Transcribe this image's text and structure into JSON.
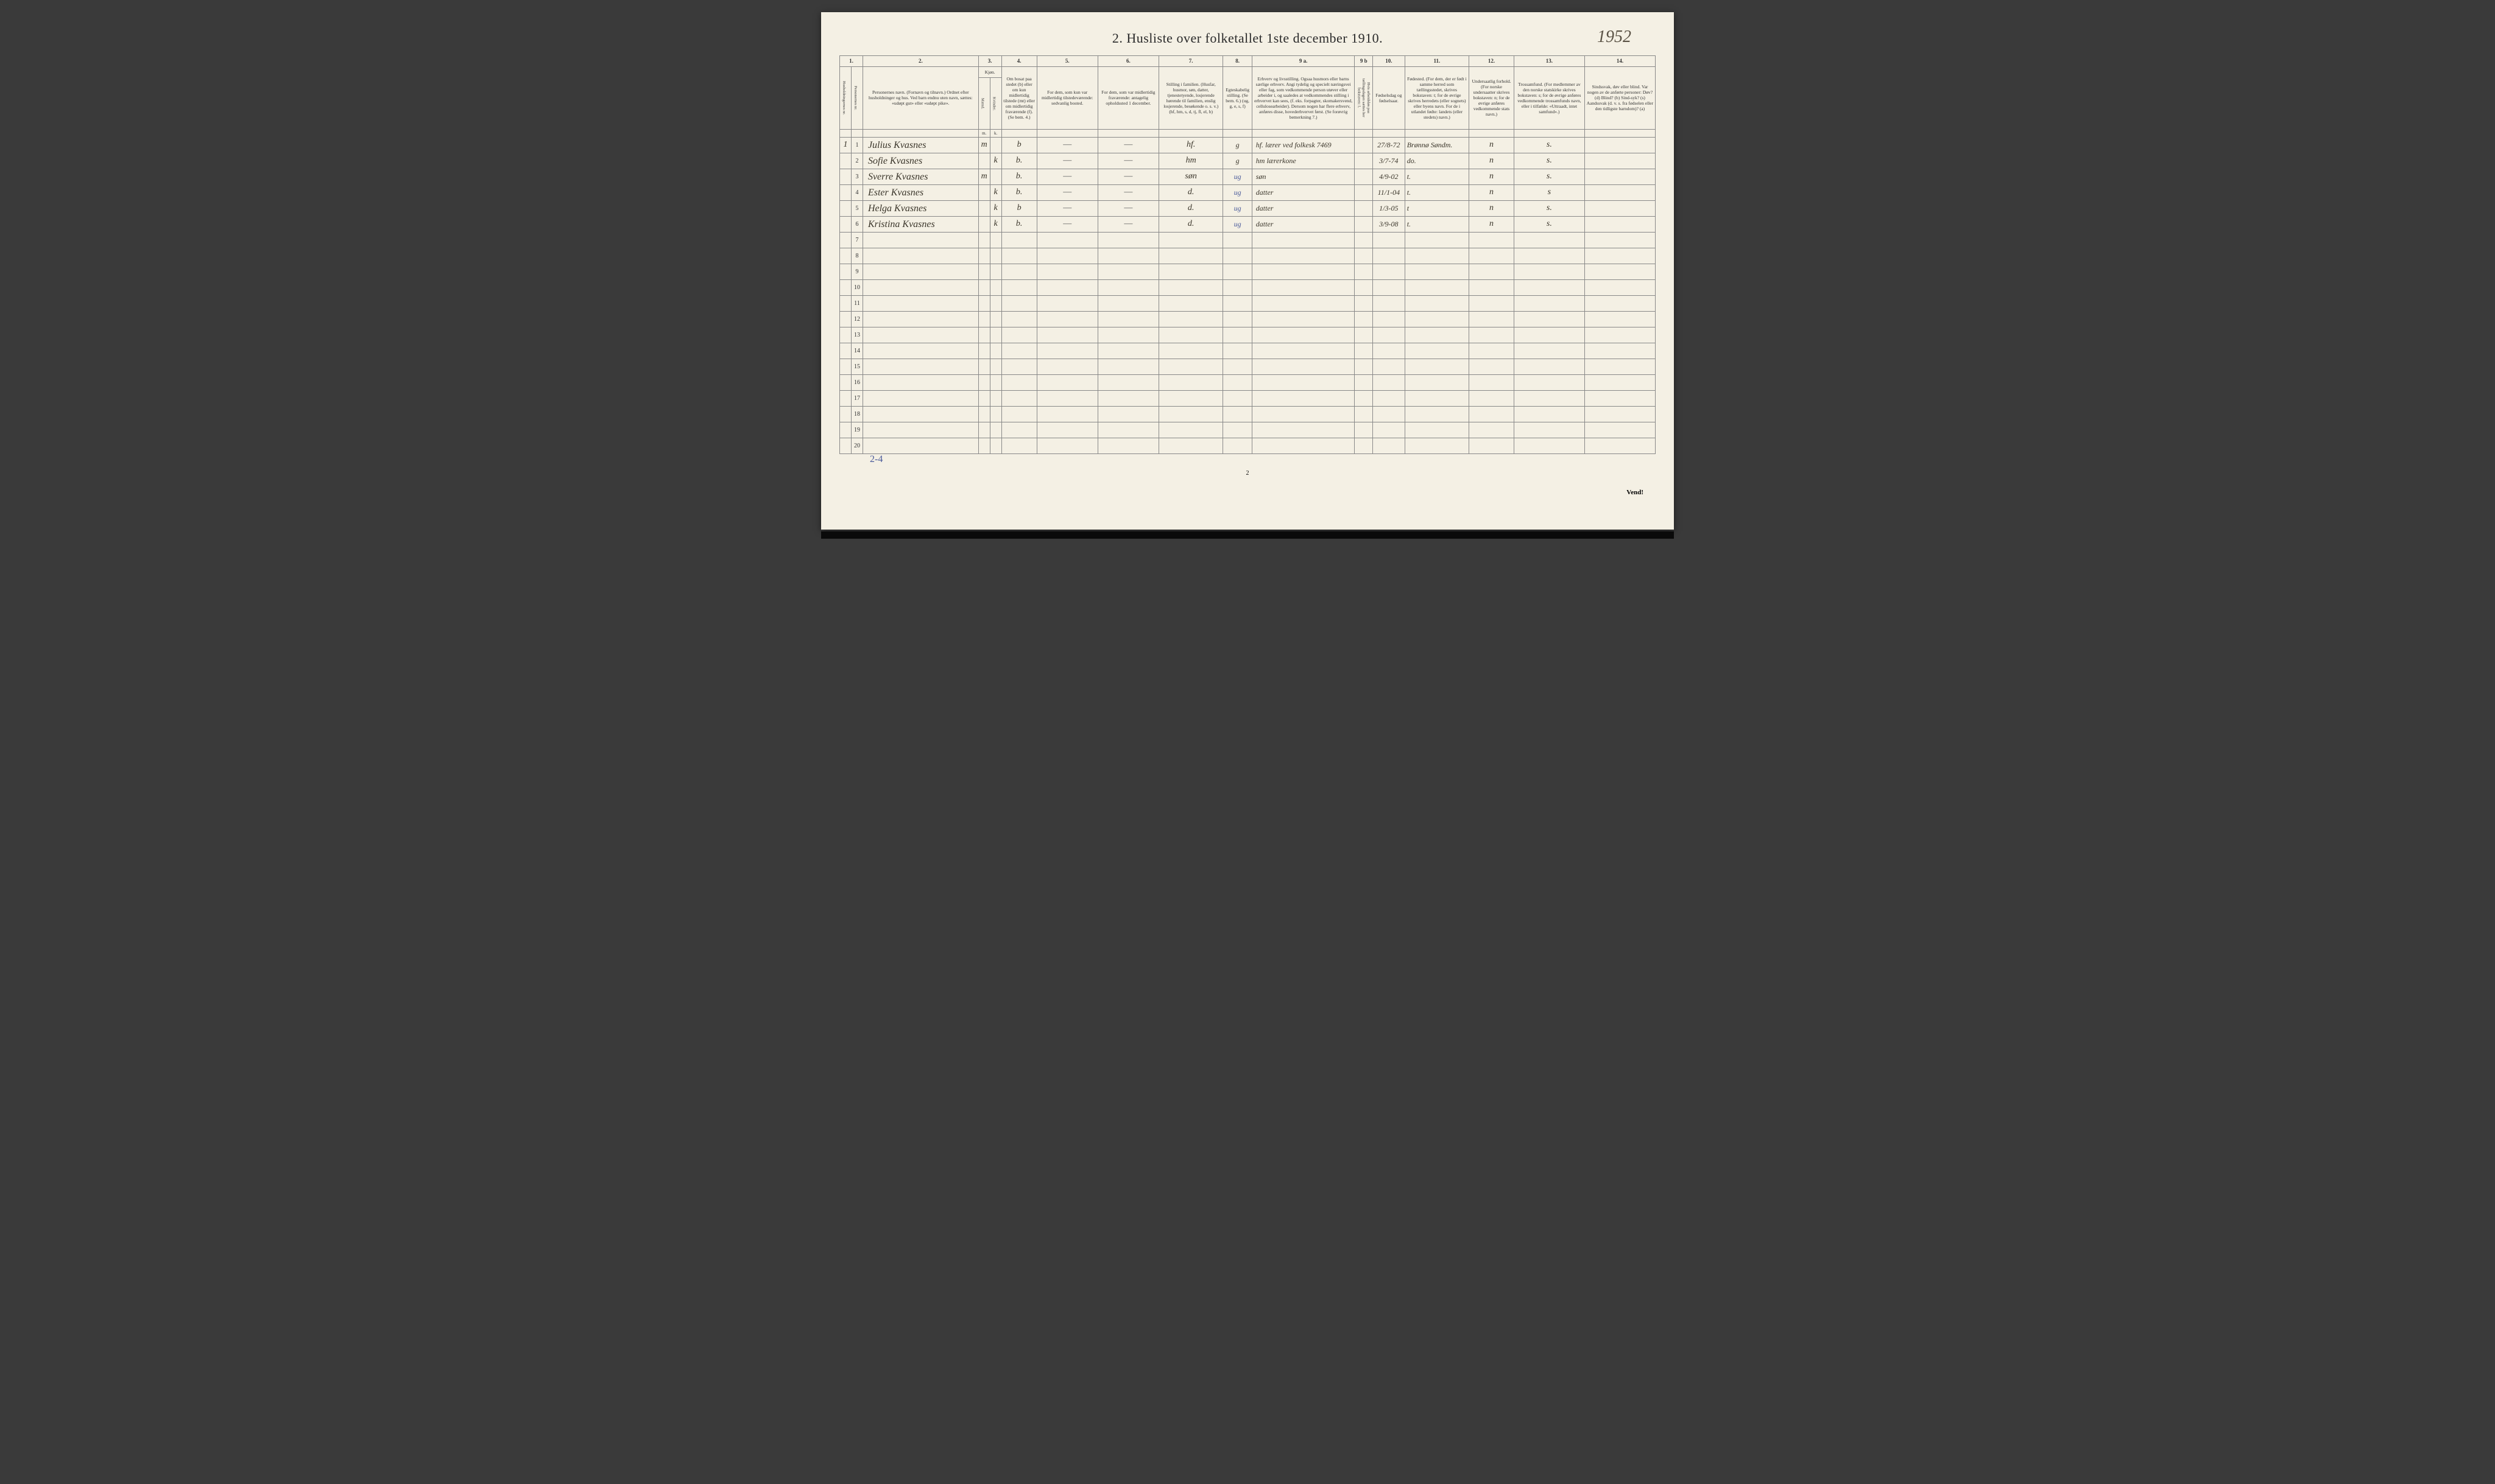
{
  "title": "2.  Husliste over folketallet 1ste december 1910.",
  "handwritten_year": "1952",
  "column_numbers": [
    "1.",
    "",
    "2.",
    "3.",
    "",
    "4.",
    "5.",
    "6.",
    "7.",
    "8.",
    "9 a.",
    "9 b",
    "10.",
    "11.",
    "12.",
    "13.",
    "14."
  ],
  "headers": {
    "c1": "Husholdningernes nr.",
    "c2": "Personernes nr.",
    "c3": "Personernes navn.\n(Fornavn og tilnavn.)\nOrdnet efter husholdninger og hus.\nVed barn endnu uten navn, sættes: «udøpt gut» eller «udøpt pike».",
    "c4": "Kjøn.",
    "c4a": "Mænd.",
    "c4b": "Kvinder.",
    "c5": "Om bosat paa stedet (b) eller om kun midlertidig tilstede (mt) eller om midlertidig fraværende (f).\n(Se bem. 4.)",
    "c6": "For dem, som kun var midlertidig tilstedeværende:\nsedvanlig bosted.",
    "c7": "For dem, som var midlertidig fraværende:\nantagelig opholdssted 1 december.",
    "c8": "Stilling i familien.\n(Husfar, husmor, søn, datter, tjenestetyende, losjerende hørende til familien, enslig losjerende, besøkende o. s. v.)\n(hf, hm, s, d, tj, fl, el, b)",
    "c9": "Egteskabelig stilling.\n(Se bem. 6.)\n(ug, g, e, s, f)",
    "c10a": "Erhverv og livsstilling.\nOgsaa husmors eller barns særlige erhverv. Angi tydelig og specielt næringsvei eller fag, som vedkommende person utøver eller arbeider i, og saaledes at vedkommendes stilling i erhvervet kan sees, (f. eks. forpagter, skomakersvend, cellulosearbeider). Dersom nogen har flere erhverv, anføres disse, hovederhvervet først.\n(Se forøvrig bemerkning 7.)",
    "c10b": "Hvis arbeidsløs paa tællingsdagen sættes her bokstaven: l.",
    "c11": "Fødselsdag og fødselsaar.",
    "c12": "Fødested.\n(For dem, der er født i samme herred som tællingsstedet, skrives bokstaven: t; for de øvrige skrives herredets (eller sognets) eller byens navn. For de i utlandet fødte: landets (eller stedets) navn.)",
    "c13": "Undersaatlig forhold.\n(For norske undersaatter skrives bokstaven: n; for de øvrige anføres vedkommende stats navn.)",
    "c14": "Trossamfund.\n(For medlemmer av den norske statskirke skrives bokstaven: s; for de øvrige anføres vedkommende trossamfunds navn, eller i tilfælde: «Uttraadt, intet samfund».)",
    "c15": "Sindssvak, døv eller blind.\nVar nogen av de anførte personer:\nDøv? (d)\nBlind? (b)\nSind-syk? (s)\nAandssvak (d. v. s. fra fødselen eller den tidligste barndom)? (a)"
  },
  "mk_row": {
    "m": "m.",
    "k": "k."
  },
  "rows": [
    {
      "hnr": "1",
      "pnr": "1",
      "name": "Julius Kvasnes",
      "m": "m",
      "k": "",
      "b": "b",
      "c6": "—",
      "c7": "—",
      "fam": "hf.",
      "egte": "g",
      "erhv": "hf. lærer ved folkesk 7469",
      "l": "",
      "dob": "27/8-72",
      "fsted": "Brønnø Søndm.",
      "und": "n",
      "tro": "s.",
      "sind": ""
    },
    {
      "hnr": "",
      "pnr": "2",
      "name": "Sofie Kvasnes",
      "m": "",
      "k": "k",
      "b": "b.",
      "c6": "—",
      "c7": "—",
      "fam": "hm",
      "egte": "g",
      "erhv": "hm lærerkone",
      "l": "",
      "dob": "3/7-74",
      "fsted": "do.",
      "und": "n",
      "tro": "s.",
      "sind": ""
    },
    {
      "hnr": "",
      "pnr": "3",
      "name": "Sverre Kvasnes",
      "m": "m",
      "k": "",
      "b": "b.",
      "c6": "—",
      "c7": "—",
      "fam": "søn",
      "egte": "ug",
      "erhv": "søn",
      "l": "",
      "dob": "4/9-02",
      "fsted": "t.",
      "und": "n",
      "tro": "s.",
      "sind": ""
    },
    {
      "hnr": "",
      "pnr": "4",
      "name": "Ester Kvasnes",
      "m": "",
      "k": "k",
      "b": "b.",
      "c6": "—",
      "c7": "—",
      "fam": "d.",
      "egte": "ug",
      "erhv": "datter",
      "l": "",
      "dob": "11/1-04",
      "fsted": "t.",
      "und": "n",
      "tro": "s",
      "sind": ""
    },
    {
      "hnr": "",
      "pnr": "5",
      "name": "Helga Kvasnes",
      "m": "",
      "k": "k",
      "b": "b",
      "c6": "—",
      "c7": "—",
      "fam": "d.",
      "egte": "ug",
      "erhv": "datter",
      "l": "",
      "dob": "1/3-05",
      "fsted": "t",
      "und": "n",
      "tro": "s.",
      "sind": ""
    },
    {
      "hnr": "",
      "pnr": "6",
      "name": "Kristina Kvasnes",
      "m": "",
      "k": "k",
      "b": "b.",
      "c6": "—",
      "c7": "—",
      "fam": "d.",
      "egte": "ug",
      "erhv": "datter",
      "l": "",
      "dob": "3/9-08",
      "fsted": "t.",
      "und": "n",
      "tro": "s.",
      "sind": ""
    }
  ],
  "empty_rows": [
    "7",
    "8",
    "9",
    "10",
    "11",
    "12",
    "13",
    "14",
    "15",
    "16",
    "17",
    "18",
    "19",
    "20"
  ],
  "bottom_note": "2-4",
  "page_num": "2",
  "vend": "Vend!",
  "colors": {
    "paper": "#f4f0e4",
    "border": "#888888",
    "text": "#333333",
    "handwriting": "#3a352a",
    "blue_ink": "#4a5a9a",
    "background": "#3a3a3a"
  }
}
